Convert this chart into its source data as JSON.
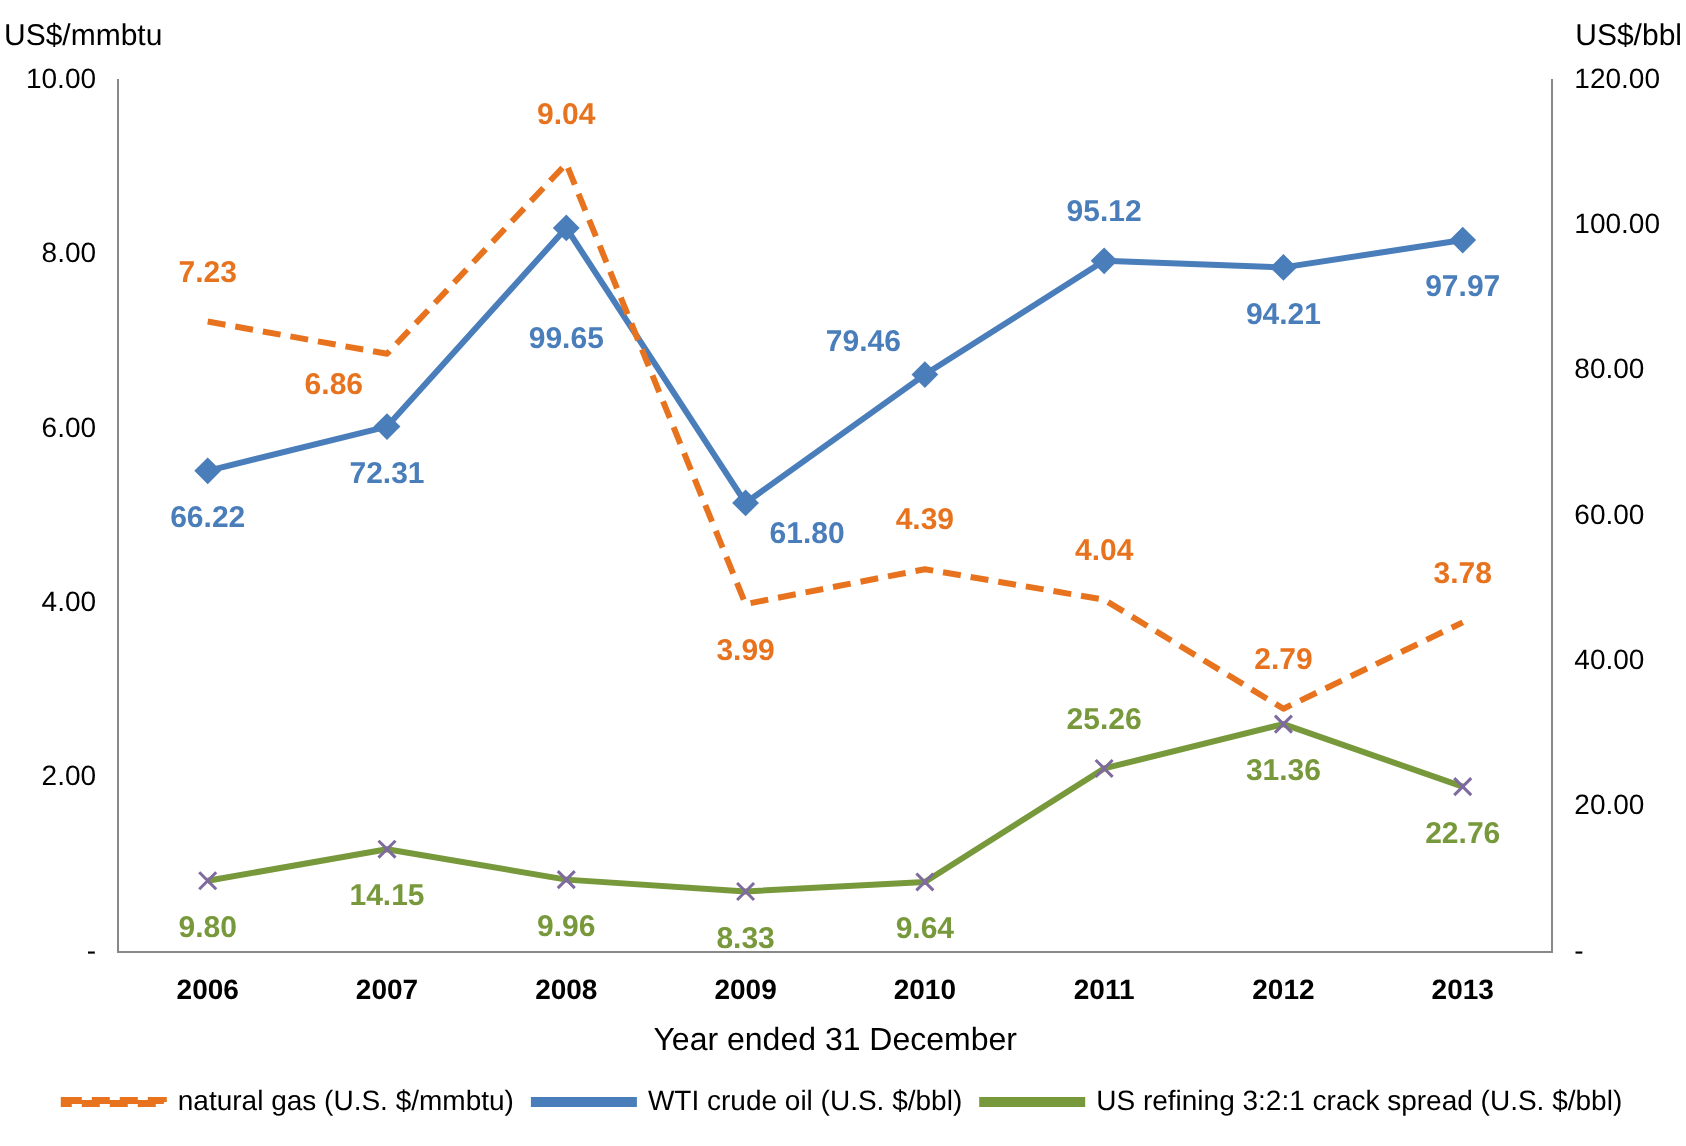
{
  "chart_data": {
    "type": "line",
    "xlabel": "Year ended 31 December",
    "ylabel": "US$/mmbtu",
    "y2label": "US$/bbl",
    "categories": [
      "2006",
      "2007",
      "2008",
      "2009",
      "2010",
      "2011",
      "2012",
      "2013"
    ],
    "ylim": [
      0,
      10
    ],
    "yticks": [
      {
        "value": 0,
        "label": "-"
      },
      {
        "value": 2,
        "label": "2.00"
      },
      {
        "value": 4,
        "label": "4.00"
      },
      {
        "value": 6,
        "label": "6.00"
      },
      {
        "value": 8,
        "label": "8.00"
      },
      {
        "value": 10,
        "label": "10.00"
      }
    ],
    "y2lim": [
      0,
      120
    ],
    "y2ticks": [
      {
        "value": 0,
        "label": "-"
      },
      {
        "value": 20,
        "label": "20.00"
      },
      {
        "value": 40,
        "label": "40.00"
      },
      {
        "value": 60,
        "label": "60.00"
      },
      {
        "value": 80,
        "label": "80.00"
      },
      {
        "value": 100,
        "label": "100.00"
      },
      {
        "value": 120,
        "label": "120.00"
      }
    ],
    "grid": false,
    "legend": "bottom",
    "series": [
      {
        "name": "natural gas (U.S. $/mmbtu)",
        "color": "#e8731e",
        "line_style": "dashed",
        "marker": "none",
        "values": [
          7.23,
          6.86,
          9.04,
          3.99,
          4.39,
          4.04,
          2.79,
          3.78
        ],
        "value_labels": [
          "7.23",
          "6.86",
          "9.04",
          "3.99",
          "4.39",
          "4.04",
          "2.79",
          "3.78"
        ]
      },
      {
        "name": "WTI crude oil (U.S. $/bbl)",
        "color": "#4a7ebb",
        "line_style": "solid",
        "marker": "diamond",
        "axis": "y2",
        "values": [
          66.22,
          72.31,
          99.65,
          61.8,
          79.46,
          95.12,
          94.21,
          97.97
        ],
        "value_labels": [
          "66.22",
          "72.31",
          "99.65",
          "61.80",
          "79.46",
          "95.12",
          "94.21",
          "97.97"
        ]
      },
      {
        "name": "US refining 3:2:1 crack spread (U.S. $/bbl)",
        "color": "#77993b",
        "line_style": "solid",
        "marker": "cross",
        "axis": "y2",
        "values": [
          9.8,
          14.15,
          9.96,
          8.33,
          9.64,
          25.26,
          31.36,
          22.76
        ],
        "value_labels": [
          "9.80",
          "14.15",
          "9.96",
          "8.33",
          "9.64",
          "25.26",
          "31.36",
          "22.76"
        ]
      }
    ]
  }
}
